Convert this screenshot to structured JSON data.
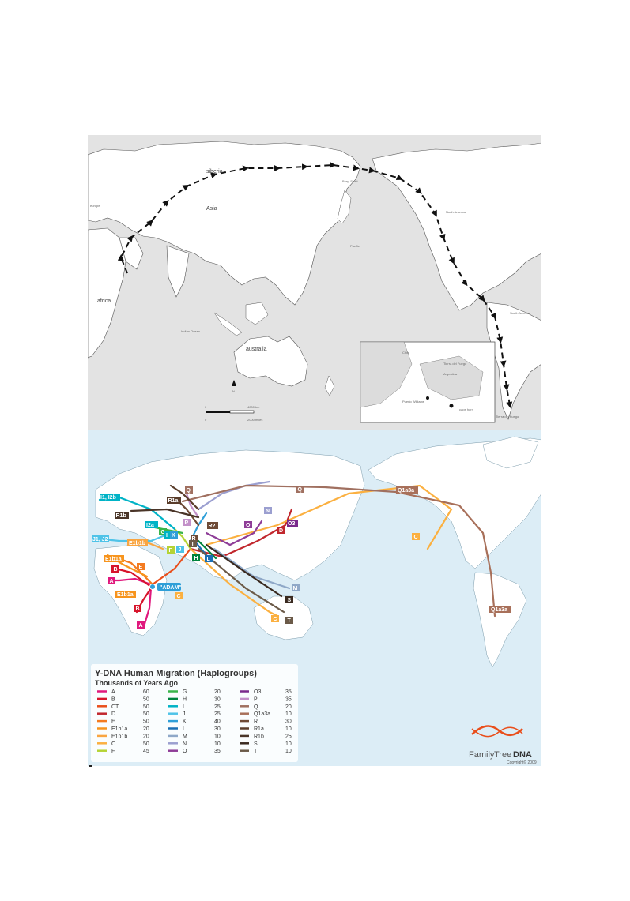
{
  "map_top": {
    "labels": {
      "siberia": "siberia",
      "asia": "Asia",
      "europe": "europe",
      "africa": "africa",
      "indian_ocean": "Indian Ocean",
      "australia": "australia",
      "pacific": "Pacific",
      "beryl_strait": "Beryl Strait",
      "north_america": "North America",
      "south_america": "South America",
      "tierra_del_fuego": "Tierra del Fuego"
    },
    "scale": {
      "zero_km": "0",
      "km": "4000 km",
      "zero_mi": "0",
      "miles": "2000 miles",
      "north": "N"
    },
    "inset": {
      "chile": "Chile",
      "argentina": "Argentina",
      "tierra_del_fuego": "Tierra del Fuego",
      "puerto_williams": "Puerto Williams",
      "cape_horn": "cape horn"
    },
    "colors": {
      "land": "#ffffff",
      "sea": "#e3e3e3",
      "route": "#111111"
    }
  },
  "map_bottom": {
    "title": "Y-DNA Human Migration (Haplogroups)",
    "subtitle": "Thousands of Years Ago",
    "legend": [
      {
        "key": "A",
        "val": "60",
        "color": "#e0197d"
      },
      {
        "key": "B",
        "val": "50",
        "color": "#d7142b"
      },
      {
        "key": "CT",
        "val": "50",
        "color": "#e94e1b"
      },
      {
        "key": "D",
        "val": "50",
        "color": "#c1272d"
      },
      {
        "key": "E",
        "val": "50",
        "color": "#f47b20"
      },
      {
        "key": "E1b1a",
        "val": "20",
        "color": "#f7941d"
      },
      {
        "key": "E1b1b",
        "val": "20",
        "color": "#f9a541"
      },
      {
        "key": "C",
        "val": "50",
        "color": "#fbb040"
      },
      {
        "key": "F",
        "val": "45",
        "color": "#b5d334"
      },
      {
        "key": "G",
        "val": "20",
        "color": "#3ab54a"
      },
      {
        "key": "H",
        "val": "30",
        "color": "#00843d"
      },
      {
        "key": "I",
        "val": "25",
        "color": "#00b3c6"
      },
      {
        "key": "J",
        "val": "25",
        "color": "#4fc3e8"
      },
      {
        "key": "K",
        "val": "40",
        "color": "#2f9fd8"
      },
      {
        "key": "L",
        "val": "30",
        "color": "#1b6fb4"
      },
      {
        "key": "M",
        "val": "10",
        "color": "#8fa8c8"
      },
      {
        "key": "N",
        "val": "10",
        "color": "#9b9fd0"
      },
      {
        "key": "O",
        "val": "35",
        "color": "#8e3d97"
      },
      {
        "key": "O3",
        "val": "35",
        "color": "#7b2b8c"
      },
      {
        "key": "P",
        "val": "35",
        "color": "#c391c9"
      },
      {
        "key": "Q",
        "val": "20",
        "color": "#a07060"
      },
      {
        "key": "Q1a3a",
        "val": "10",
        "color": "#a8705a"
      },
      {
        "key": "R",
        "val": "30",
        "color": "#6e4a36"
      },
      {
        "key": "R1a",
        "val": "10",
        "color": "#5a3d2b"
      },
      {
        "key": "R1b",
        "val": "25",
        "color": "#4a3528"
      },
      {
        "key": "S",
        "val": "10",
        "color": "#3a2a20"
      },
      {
        "key": "T",
        "val": "10",
        "color": "#6b5a48"
      }
    ],
    "tags": {
      "adam": "\"ADAM\"",
      "a": "A",
      "b": "B",
      "c": "C",
      "d": "D",
      "e": "E",
      "f": "F",
      "g": "G",
      "h": "H",
      "i": "I",
      "j": "J",
      "k": "K",
      "l": "L",
      "m": "M",
      "n": "N",
      "o": "O",
      "o3": "O3",
      "p": "P",
      "q": "Q",
      "q1a3a": "Q1a3a",
      "r": "R",
      "r1a": "R1a",
      "r1b": "R1b",
      "r2": "R2",
      "s": "S",
      "t": "T",
      "e1b1a": "E1b1a",
      "e1b1b": "E1b1b",
      "i1_i2b": "I1, I2b",
      "i2a": "I2a",
      "j1_j2": "J1, J2"
    },
    "logo": {
      "family": "Family",
      "tree": "Tree",
      "dna": "DNA",
      "copyright": "Copyright© 2009"
    },
    "colors": {
      "sea": "#dcedf6",
      "land": "#ffffff",
      "title": "#333333"
    }
  }
}
